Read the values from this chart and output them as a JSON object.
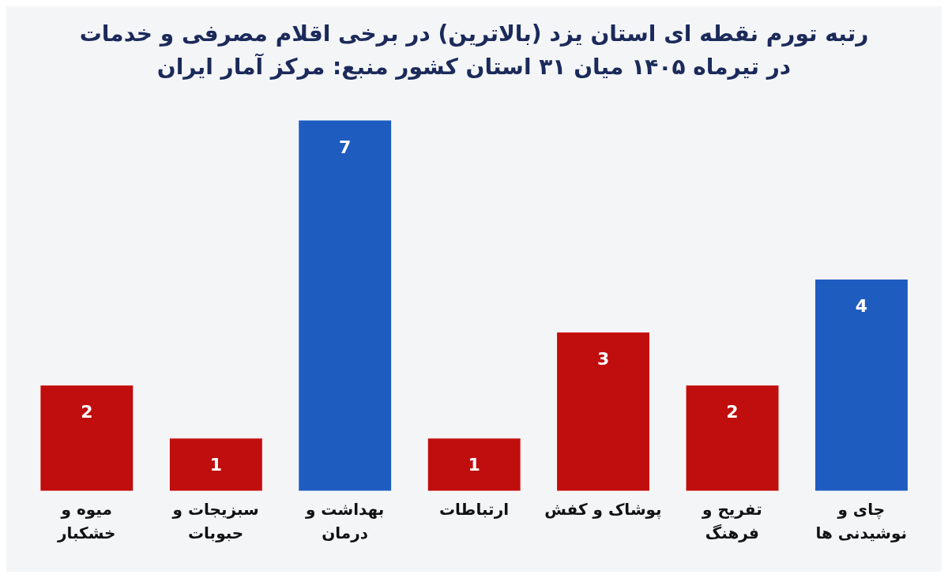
{
  "chart_data": {
    "type": "bar",
    "title": "رتبه تورم نقطه ای استان یزد (بالاترین) در برخی اقلام مصرفی و خدمات\nدر تیرماه ۱۴۰۵ میان ۳۱ استان کشور منبع: مرکز آمار ایران",
    "categories": [
      "میوه و\nخشکبار",
      "سبزیجات و\nحبوبات",
      "بهداشت و\nدرمان",
      "ارتباطات",
      "پوشاک و کفش",
      "تفریح و\nفرهنگ",
      "چای و\nنوشیدنی ها"
    ],
    "values": [
      2,
      1,
      7,
      1,
      3,
      2,
      4
    ],
    "colors": [
      "#c00d0d",
      "#c00d0d",
      "#1f5cc0",
      "#c00d0d",
      "#c00d0d",
      "#c00d0d",
      "#1f5cc0"
    ],
    "data_labels": true,
    "grid": false,
    "legend": false
  }
}
